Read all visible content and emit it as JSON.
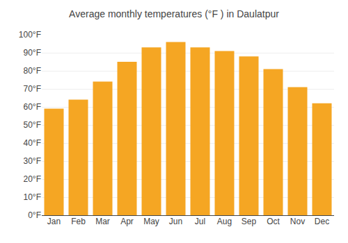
{
  "chart_data": {
    "type": "bar",
    "title": "Average monthly temperatures (°F ) in Daulatpur",
    "categories": [
      "Jan",
      "Feb",
      "Mar",
      "Apr",
      "May",
      "Jun",
      "Jul",
      "Aug",
      "Sep",
      "Oct",
      "Nov",
      "Dec"
    ],
    "values": [
      59,
      64,
      74,
      85,
      93,
      96,
      93,
      91,
      88,
      81,
      71,
      62
    ],
    "color": "#F5A623",
    "ylim": [
      0,
      100
    ],
    "yticks": [
      {
        "value": 0,
        "label": "0°F"
      },
      {
        "value": 10,
        "label": "10°F"
      },
      {
        "value": 20,
        "label": "20°F"
      },
      {
        "value": 30,
        "label": "30°F"
      },
      {
        "value": 40,
        "label": "40°F"
      },
      {
        "value": 50,
        "label": "50°F"
      },
      {
        "value": 60,
        "label": "60°F"
      },
      {
        "value": 70,
        "label": "70°F"
      },
      {
        "value": 80,
        "label": "80°F"
      },
      {
        "value": 90,
        "label": "90°F"
      },
      {
        "value": 100,
        "label": "100°F"
      }
    ],
    "grid": true
  }
}
